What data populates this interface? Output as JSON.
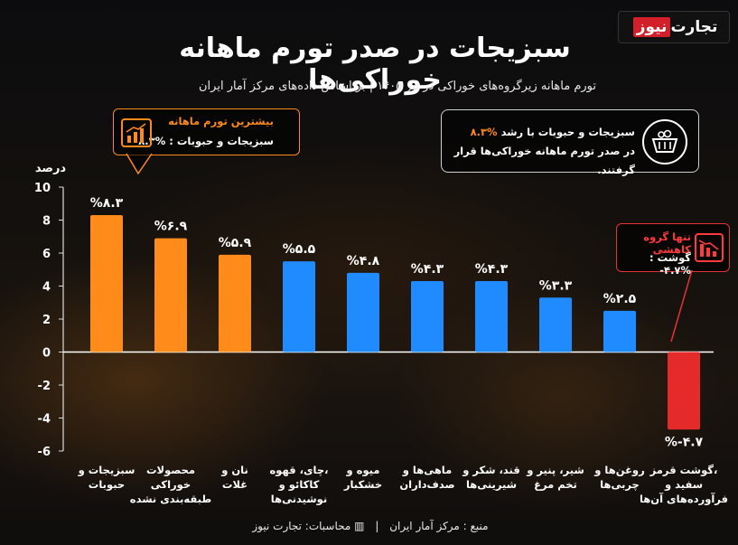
{
  "logo": {
    "part1": "تجارت",
    "part2": "نیوز"
  },
  "title": "سبزیجات در صدر تورم ماهانه خوراکی‌ها",
  "subtitle": "تورم ماهانه زیرگروه‌های خوراکی در تیر ۱۴۰۵ | بر اساس داده‌های مرکز آمار ایران",
  "info_box": {
    "line1_prefix": "سبزیجات و حبوبات با رشد",
    "line1_highlight": "%۸.۳",
    "line2": "در صدر تورم ماهانه خوراکی‌ها قرار گرفتند.",
    "icon": "basket-icon"
  },
  "callout_highest": {
    "heading": "بیشترین تورم ماهانه",
    "body": "سبزیجات و حبوبات : %۸.۳",
    "icon": "rising-chart-icon"
  },
  "callout_lowest": {
    "heading": "تنها گروه کاهشی",
    "body": "گوشت : %۴.۷-",
    "icon": "falling-chart-icon"
  },
  "source": {
    "left": "منبع : مرکز آمار ایران",
    "right": "محاسبات: تجارت نیوز"
  },
  "colors": {
    "orange": "#ff8c1a",
    "blue": "#1f8bff",
    "red": "#e52a2a",
    "accent_orange": "#ff8a1c",
    "accent_red": "#ff3b3b"
  },
  "chart_data": {
    "type": "bar",
    "ylabel": "درصد",
    "ylim": [
      -6,
      10
    ],
    "yticks": [
      10,
      8,
      6,
      4,
      2,
      0,
      -2,
      -4,
      -6
    ],
    "ytick_labels": [
      "10",
      "8",
      "6",
      "4",
      "2",
      "0",
      "-2",
      "-4",
      "-6"
    ],
    "categories": [
      [
        "سبزیجات و",
        "حبوبات"
      ],
      [
        "محصولات",
        "خوراکی",
        "طبقه‌بندی نشده"
      ],
      [
        "نان و",
        "غلات"
      ],
      [
        "چای، قهوه،",
        "کاکائو و",
        "نوشیدنی‌ها"
      ],
      [
        "میوه و",
        "خشکبار"
      ],
      [
        "ماهی‌ها و",
        "صدف‌داران"
      ],
      [
        "قند، شکر و",
        "شیرینی‌ها"
      ],
      [
        "شیر، پنیر و",
        "تخم مرغ"
      ],
      [
        "روغن‌ها و",
        "چربی‌ها"
      ],
      [
        "گوشت قرمز،",
        "سفید و",
        "فرآورده‌های آن‌ها"
      ]
    ],
    "values": [
      8.3,
      6.9,
      5.9,
      5.5,
      4.8,
      4.3,
      4.3,
      3.3,
      2.5,
      -4.7
    ],
    "labels": [
      "%۸.۳",
      "%۶.۹",
      "%۵.۹",
      "%۵.۵",
      "%۴.۸",
      "%۴.۳",
      "%۴.۳",
      "%۳.۳",
      "%۲.۵",
      "%-۴.۷"
    ],
    "bar_colors": [
      "orange",
      "orange",
      "orange",
      "blue",
      "blue",
      "blue",
      "blue",
      "blue",
      "blue",
      "red"
    ],
    "grid": false
  }
}
